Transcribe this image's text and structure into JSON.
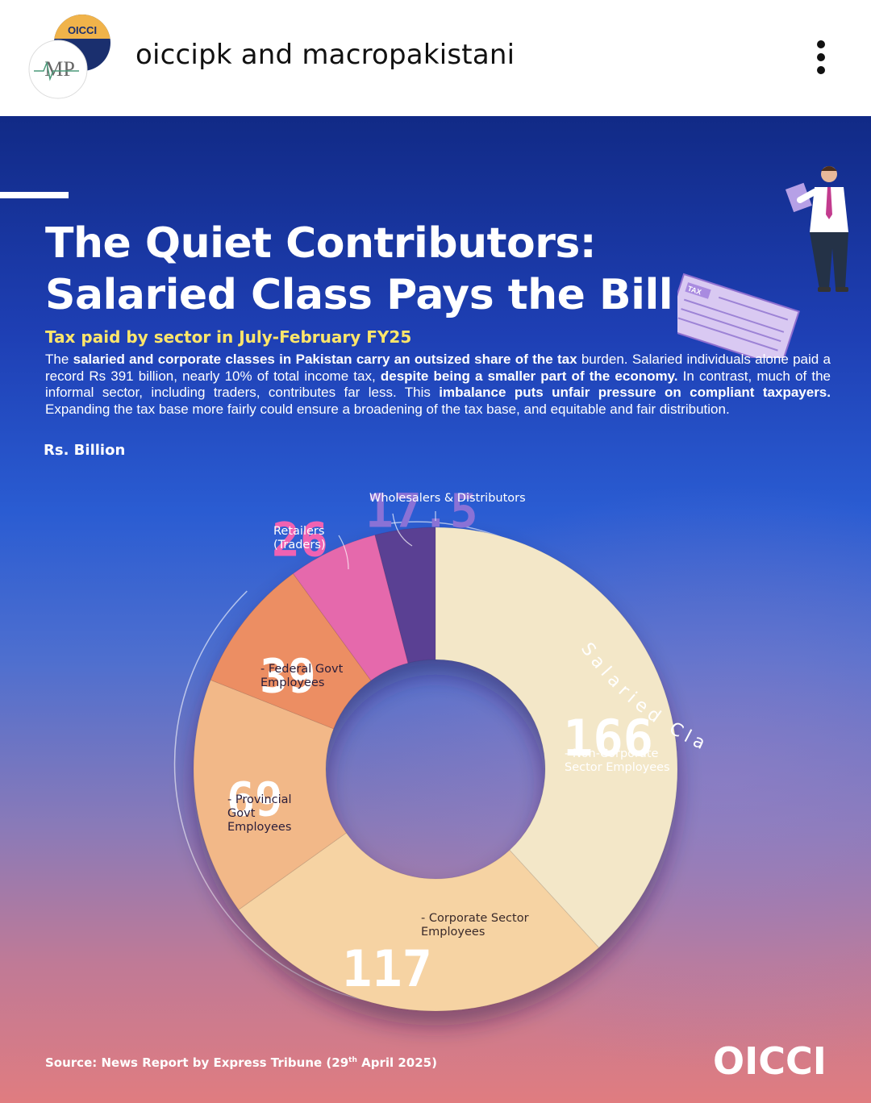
{
  "header": {
    "account_title": "oiccipk and macropakistani",
    "avatar_primary_text": "OICCI",
    "avatar_secondary_text": "MP",
    "more_icon": "more-vertical-icon"
  },
  "post": {
    "title_line1": "The Quiet Contributors:",
    "title_line2": "Salaried Class Pays the Bill",
    "subtitle": "Tax paid by sector in July-February FY25",
    "body": {
      "p1": "The ",
      "b1": "salaried and corporate classes in Pakistan carry an outsized share of the tax",
      "p2": " burden. Salaried individuals alone paid a record Rs 391 billion, nearly 10% of total income tax, ",
      "b2": "despite being a smaller part of the economy.",
      "p3": " In contrast, much of the informal sector, including traders, contributes far less. This ",
      "b3": "imbalance puts unfair pressure on compliant taxpayers.",
      "p4": " Expanding the tax base more fairly could ensure a broadening of the tax base, and equitable and fair distribution."
    },
    "units": "Rs. Billion",
    "arc_label": "Salaried Class",
    "illustration_tax_label": "TAX",
    "source_prefix": "Source: News Report by Express Tribune (29",
    "source_sup": "th",
    "source_suffix": " April 2025)",
    "brand_logo_text": "OICCI"
  },
  "chart_data": {
    "type": "pie",
    "donut": true,
    "units": "Rs. Billion",
    "categories": [
      "Non-Corporate Sector Employees",
      "Corporate Sector Employees",
      "Provincial Govt Employees",
      "Federal Govt Employees",
      "Retailers (Traders)",
      "Wholesalers & Distributors"
    ],
    "values": [
      166,
      117,
      69,
      39,
      26,
      17.5
    ],
    "value_labels": [
      "166",
      "117",
      "69",
      "39",
      "26",
      "17.5"
    ],
    "label_lines": [
      [
        "- Non-Corporate",
        "Sector Employees"
      ],
      [
        "- Corporate Sector",
        "Employees"
      ],
      [
        "- Provincial",
        "Govt",
        "Employees"
      ],
      [
        "- Federal Govt",
        "Employees"
      ],
      [
        "Retailers",
        "(Traders)"
      ],
      [
        "Wholesalers & Distributors"
      ]
    ],
    "colors": [
      "#f3e7c8",
      "#f6d3a3",
      "#f2b888",
      "#ec8e63",
      "#e569ac",
      "#5a3f93"
    ],
    "value_colors": [
      "#ffffff",
      "#ffffff",
      "#ffffff",
      "#ffffff",
      "#f062b2",
      "#8a72d6"
    ]
  }
}
